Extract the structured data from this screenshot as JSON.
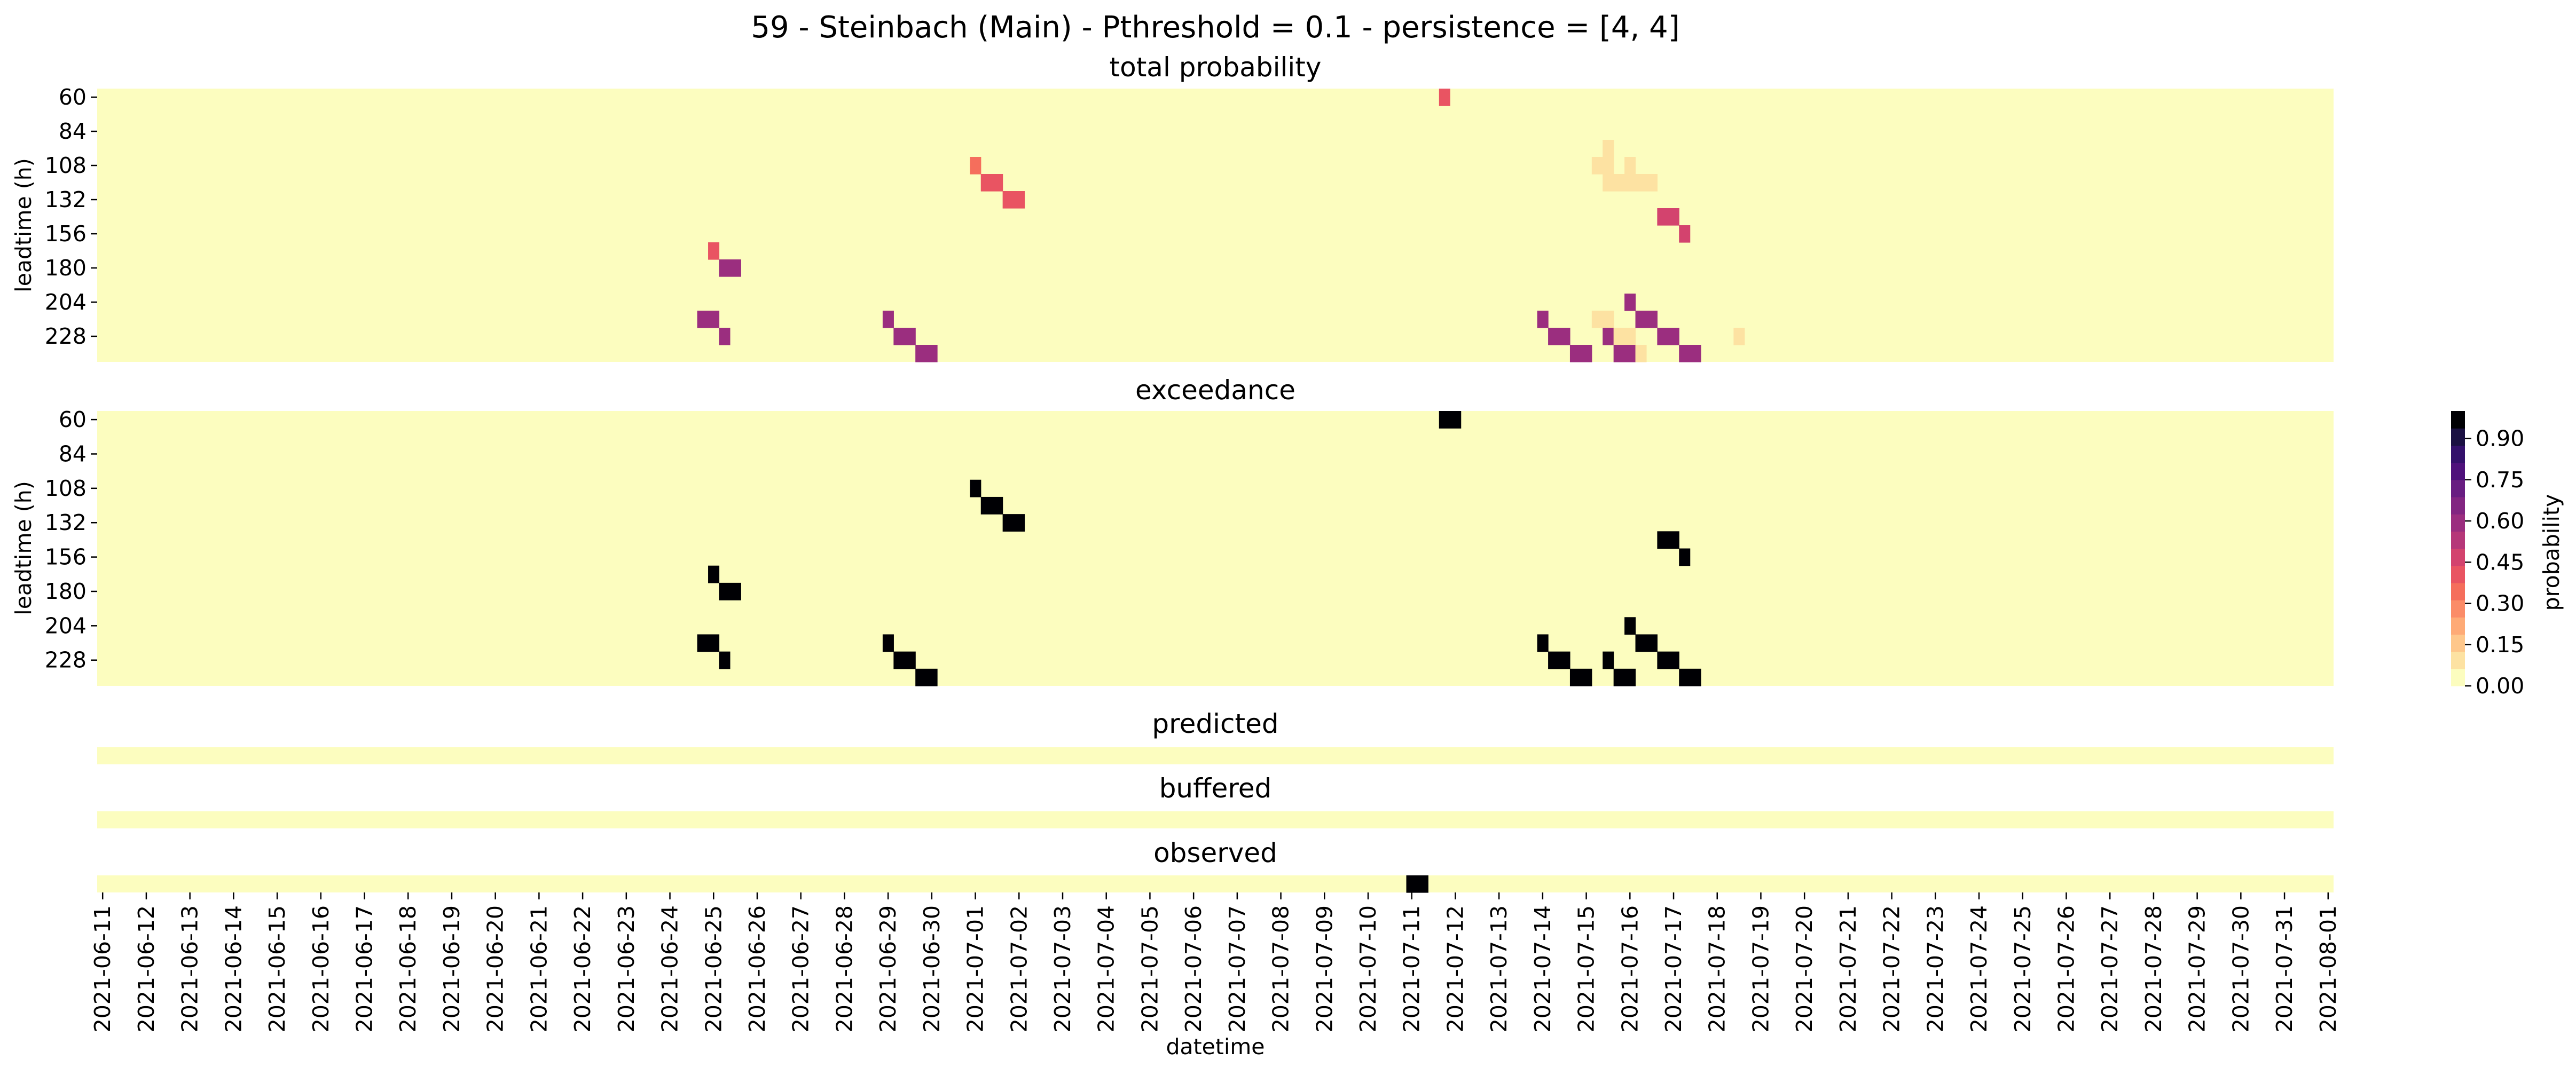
{
  "title": "59 - Steinbach (Main) - Pthreshold = 0.1 - persistence = [4, 4]",
  "x_axis_label": "datetime",
  "y_axis_label": "leadtime (h)",
  "chart_data": {
    "type": "heatmap",
    "title": "59 - Steinbach (Main) - Pthreshold = 0.1 - persistence = [4, 4]",
    "xlabel": "datetime",
    "x_ticks": [
      "2021-06-11",
      "2021-06-12",
      "2021-06-13",
      "2021-06-14",
      "2021-06-15",
      "2021-06-16",
      "2021-06-17",
      "2021-06-18",
      "2021-06-19",
      "2021-06-20",
      "2021-06-21",
      "2021-06-22",
      "2021-06-23",
      "2021-06-24",
      "2021-06-25",
      "2021-06-26",
      "2021-06-27",
      "2021-06-28",
      "2021-06-29",
      "2021-06-30",
      "2021-07-01",
      "2021-07-02",
      "2021-07-03",
      "2021-07-04",
      "2021-07-05",
      "2021-07-06",
      "2021-07-07",
      "2021-07-08",
      "2021-07-09",
      "2021-07-10",
      "2021-07-11",
      "2021-07-12",
      "2021-07-13",
      "2021-07-14",
      "2021-07-15",
      "2021-07-16",
      "2021-07-17",
      "2021-07-18",
      "2021-07-19",
      "2021-07-20",
      "2021-07-21",
      "2021-07-22",
      "2021-07-23",
      "2021-07-24",
      "2021-07-25",
      "2021-07-26",
      "2021-07-27",
      "2021-07-28",
      "2021-07-29",
      "2021-07-30",
      "2021-07-31",
      "2021-08-01"
    ],
    "x_start": "2021-06-11T00:00",
    "time_step_h": 6,
    "y_ticks": [
      60,
      84,
      108,
      132,
      156,
      180,
      204,
      228
    ],
    "leadtime_min_h": 60,
    "leadtime_step_h": 12,
    "leadtime_count": 16,
    "colorbar": {
      "label": "probability",
      "ticks": [
        "0.00",
        "0.15",
        "0.30",
        "0.45",
        "0.60",
        "0.75",
        "0.90"
      ],
      "min": 0,
      "max": 1,
      "colors": [
        "#fcfdbf",
        "#fde2a2",
        "#fec78b",
        "#feaa76",
        "#fb8c68",
        "#f56e5c",
        "#e95462",
        "#d3436e",
        "#b63779",
        "#9b2e7f",
        "#822581",
        "#681d81",
        "#4e117b",
        "#33106b",
        "#1a1042",
        "#000004"
      ]
    },
    "panels": [
      {
        "name": "total probability",
        "cells": [
          {
            "x": "2021-07-11T18:00",
            "lt": 60,
            "w": 1,
            "h": 1,
            "p": 0.4
          },
          {
            "x": "2021-07-01T00:00",
            "lt": 108,
            "w": 1,
            "h": 1,
            "p": 0.35
          },
          {
            "x": "2021-07-01T06:00",
            "lt": 120,
            "w": 2,
            "h": 1,
            "p": 0.4
          },
          {
            "x": "2021-07-01T18:00",
            "lt": 132,
            "w": 2,
            "h": 1,
            "p": 0.4
          },
          {
            "x": "2021-06-25T00:00",
            "lt": 168,
            "w": 1,
            "h": 1,
            "p": 0.4
          },
          {
            "x": "2021-06-25T06:00",
            "lt": 180,
            "w": 2,
            "h": 1,
            "p": 0.6
          },
          {
            "x": "2021-06-24T18:00",
            "lt": 216,
            "w": 2,
            "h": 1,
            "p": 0.6
          },
          {
            "x": "2021-06-25T06:00",
            "lt": 228,
            "w": 1,
            "h": 1,
            "p": 0.6
          },
          {
            "x": "2021-06-29T00:00",
            "lt": 216,
            "w": 1,
            "h": 1,
            "p": 0.6
          },
          {
            "x": "2021-06-29T06:00",
            "lt": 228,
            "w": 2,
            "h": 1,
            "p": 0.6
          },
          {
            "x": "2021-06-29T18:00",
            "lt": 240,
            "w": 2,
            "h": 1,
            "p": 0.6
          },
          {
            "x": "2021-07-15T12:00",
            "lt": 96,
            "w": 1,
            "h": 1,
            "p": 0.08
          },
          {
            "x": "2021-07-15T06:00",
            "lt": 108,
            "w": 1,
            "h": 1,
            "p": 0.08
          },
          {
            "x": "2021-07-15T12:00",
            "lt": 108,
            "w": 1,
            "h": 1,
            "p": 0.12
          },
          {
            "x": "2021-07-16T00:00",
            "lt": 108,
            "w": 1,
            "h": 1,
            "p": 0.08
          },
          {
            "x": "2021-07-15T12:00",
            "lt": 120,
            "w": 5,
            "h": 1,
            "p": 0.08
          },
          {
            "x": "2021-07-16T18:00",
            "lt": 144,
            "w": 2,
            "h": 1,
            "p": 0.45
          },
          {
            "x": "2021-07-17T06:00",
            "lt": 156,
            "w": 1,
            "h": 1,
            "p": 0.45
          },
          {
            "x": "2021-07-14T00:00",
            "lt": 216,
            "w": 1,
            "h": 1,
            "p": 0.6
          },
          {
            "x": "2021-07-14T06:00",
            "lt": 228,
            "w": 2,
            "h": 1,
            "p": 0.6
          },
          {
            "x": "2021-07-14T18:00",
            "lt": 240,
            "w": 2,
            "h": 1,
            "p": 0.6
          },
          {
            "x": "2021-07-15T06:00",
            "lt": 216,
            "w": 2,
            "h": 1,
            "p": 0.08
          },
          {
            "x": "2021-07-15T12:00",
            "lt": 228,
            "w": 1,
            "h": 1,
            "p": 0.6
          },
          {
            "x": "2021-07-15T18:00",
            "lt": 228,
            "w": 2,
            "h": 1,
            "p": 0.08
          },
          {
            "x": "2021-07-16T00:00",
            "lt": 204,
            "w": 1,
            "h": 1,
            "p": 0.6
          },
          {
            "x": "2021-07-16T06:00",
            "lt": 216,
            "w": 2,
            "h": 1,
            "p": 0.6
          },
          {
            "x": "2021-07-15T18:00",
            "lt": 240,
            "w": 2,
            "h": 1,
            "p": 0.6
          },
          {
            "x": "2021-07-16T06:00",
            "lt": 240,
            "w": 1,
            "h": 1,
            "p": 0.08
          },
          {
            "x": "2021-07-16T18:00",
            "lt": 228,
            "w": 2,
            "h": 1,
            "p": 0.6
          },
          {
            "x": "2021-07-17T06:00",
            "lt": 240,
            "w": 2,
            "h": 1,
            "p": 0.6
          },
          {
            "x": "2021-07-18T12:00",
            "lt": 228,
            "w": 1,
            "h": 1,
            "p": 0.08
          }
        ]
      },
      {
        "name": "exceedance",
        "cells": [
          {
            "x": "2021-07-11T18:00",
            "lt": 60,
            "w": 2,
            "h": 1,
            "p": 1
          },
          {
            "x": "2021-07-01T00:00",
            "lt": 108,
            "w": 1,
            "h": 1,
            "p": 1
          },
          {
            "x": "2021-07-01T06:00",
            "lt": 120,
            "w": 2,
            "h": 1,
            "p": 1
          },
          {
            "x": "2021-07-01T18:00",
            "lt": 132,
            "w": 2,
            "h": 1,
            "p": 1
          },
          {
            "x": "2021-06-25T00:00",
            "lt": 168,
            "w": 1,
            "h": 1,
            "p": 1
          },
          {
            "x": "2021-06-25T06:00",
            "lt": 180,
            "w": 2,
            "h": 1,
            "p": 1
          },
          {
            "x": "2021-06-24T18:00",
            "lt": 216,
            "w": 2,
            "h": 1,
            "p": 1
          },
          {
            "x": "2021-06-25T06:00",
            "lt": 228,
            "w": 1,
            "h": 1,
            "p": 1
          },
          {
            "x": "2021-06-29T00:00",
            "lt": 216,
            "w": 1,
            "h": 1,
            "p": 1
          },
          {
            "x": "2021-06-29T06:00",
            "lt": 228,
            "w": 2,
            "h": 1,
            "p": 1
          },
          {
            "x": "2021-06-29T18:00",
            "lt": 240,
            "w": 2,
            "h": 1,
            "p": 1
          },
          {
            "x": "2021-07-16T18:00",
            "lt": 144,
            "w": 2,
            "h": 1,
            "p": 1
          },
          {
            "x": "2021-07-17T06:00",
            "lt": 156,
            "w": 1,
            "h": 1,
            "p": 1
          },
          {
            "x": "2021-07-14T00:00",
            "lt": 216,
            "w": 1,
            "h": 1,
            "p": 1
          },
          {
            "x": "2021-07-14T06:00",
            "lt": 228,
            "w": 2,
            "h": 1,
            "p": 1
          },
          {
            "x": "2021-07-14T18:00",
            "lt": 240,
            "w": 2,
            "h": 1,
            "p": 1
          },
          {
            "x": "2021-07-15T12:00",
            "lt": 228,
            "w": 1,
            "h": 1,
            "p": 1
          },
          {
            "x": "2021-07-15T18:00",
            "lt": 240,
            "w": 2,
            "h": 1,
            "p": 1
          },
          {
            "x": "2021-07-16T00:00",
            "lt": 204,
            "w": 1,
            "h": 1,
            "p": 1
          },
          {
            "x": "2021-07-16T06:00",
            "lt": 216,
            "w": 2,
            "h": 1,
            "p": 1
          },
          {
            "x": "2021-07-16T18:00",
            "lt": 228,
            "w": 2,
            "h": 1,
            "p": 1
          },
          {
            "x": "2021-07-17T06:00",
            "lt": 240,
            "w": 2,
            "h": 1,
            "p": 1
          }
        ]
      },
      {
        "name": "predicted",
        "cells": []
      },
      {
        "name": "buffered",
        "cells": []
      },
      {
        "name": "observed",
        "cells": [
          {
            "x": "2021-07-11T00:00",
            "w": 2,
            "p": 1
          }
        ]
      }
    ]
  }
}
